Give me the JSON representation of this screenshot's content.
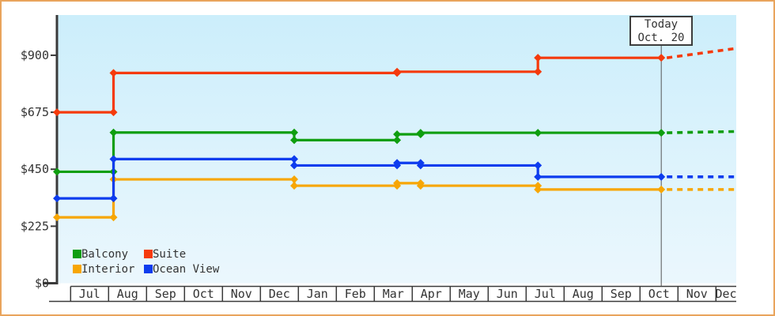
{
  "window": {
    "border_color": "#e9a45c",
    "plot_bg_top": "#cceefb",
    "plot_bg_bottom": "#ebf7fd",
    "axis_color": "#3a3a3a"
  },
  "today_box": {
    "line1": "Today",
    "line2": "Oct. 20"
  },
  "chart_data": {
    "type": "line",
    "style": "step-function price history with diamond markers and dotted future projection",
    "y_axis": {
      "range": [
        0,
        1060
      ],
      "ticks": [
        {
          "value": 0,
          "label": "$0"
        },
        {
          "value": 225,
          "label": "$225"
        },
        {
          "value": 450,
          "label": "$450"
        },
        {
          "value": 675,
          "label": "$675"
        },
        {
          "value": 900,
          "label": "$900"
        }
      ]
    },
    "x_axis": {
      "unit": "month",
      "labels": [
        "Jul",
        "Aug",
        "Sep",
        "Oct",
        "Nov",
        "Dec",
        "Jan",
        "Feb",
        "Mar",
        "Apr",
        "May",
        "Jun",
        "Jul",
        "Aug",
        "Sep",
        "Oct",
        "Nov",
        "Dec"
      ]
    },
    "today": {
      "line1": "Today",
      "line2": "Oct. 20",
      "month_index": 15.56
    },
    "series": [
      {
        "name": "Suite",
        "color": "#f53a0c",
        "steps": [
          [
            -0.36,
            675
          ],
          [
            1.13,
            830
          ],
          [
            8.6,
            835
          ],
          [
            12.31,
            890
          ]
        ],
        "projection": {
          "end_month": 17.53,
          "end_value": 927
        }
      },
      {
        "name": "Balcony",
        "color": "#0f9e0f",
        "steps": [
          [
            -0.36,
            440
          ],
          [
            1.13,
            595
          ],
          [
            5.89,
            565
          ],
          [
            8.6,
            588
          ],
          [
            9.22,
            594
          ],
          [
            12.31,
            594
          ]
        ],
        "projection": {
          "end_month": 17.53,
          "end_value": 599
        }
      },
      {
        "name": "Interior",
        "color": "#f7a603",
        "steps": [
          [
            -0.36,
            260
          ],
          [
            1.13,
            410
          ],
          [
            5.89,
            385
          ],
          [
            8.6,
            395
          ],
          [
            9.22,
            385
          ],
          [
            12.31,
            370
          ]
        ],
        "projection": {
          "end_month": 17.53,
          "end_value": 370
        }
      },
      {
        "name": "Ocean View",
        "color": "#0d3cee",
        "steps": [
          [
            -0.36,
            335
          ],
          [
            1.13,
            490
          ],
          [
            5.89,
            465
          ],
          [
            8.6,
            475
          ],
          [
            9.22,
            465
          ],
          [
            12.31,
            420
          ]
        ],
        "projection": {
          "end_month": 17.53,
          "end_value": 420
        }
      }
    ],
    "legend_rows": [
      [
        "Balcony",
        "Suite"
      ],
      [
        "Interior",
        "Ocean View"
      ]
    ]
  }
}
